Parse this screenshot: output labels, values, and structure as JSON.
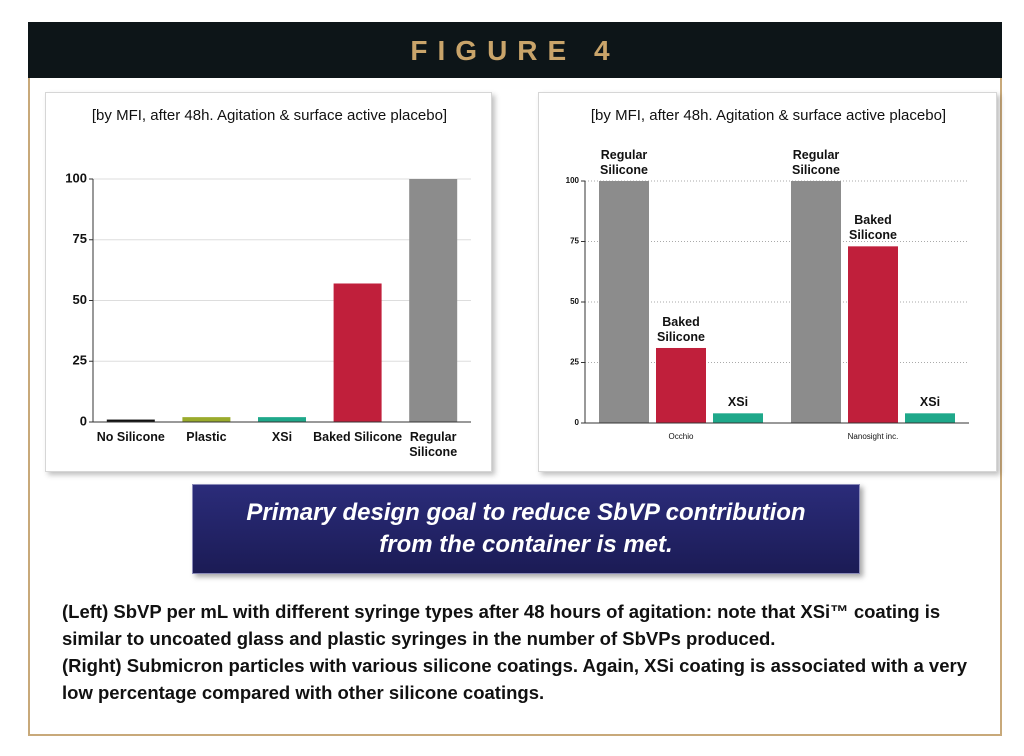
{
  "figure_title": "FIGURE 4",
  "chart_data": [
    {
      "type": "bar",
      "title": "[by MFI, after 48h. Agitation & surface active placebo]",
      "categories": [
        "No Silicone",
        "Plastic",
        "XSi",
        "Baked Silicone",
        "Regular Silicone"
      ],
      "values": [
        1,
        2,
        2,
        57,
        100
      ],
      "colors": [
        "#111111",
        "#9aab2c",
        "#1fa88a",
        "#c01f3b",
        "#8c8c8c"
      ],
      "ylim": [
        0,
        100
      ],
      "yticks": [
        0,
        25,
        50,
        75,
        100
      ],
      "grid": true
    },
    {
      "type": "grouped_bar",
      "title": "[by MFI, after 48h. Agitation & surface active placebo]",
      "categories": [
        "Occhio",
        "Nanosight inc."
      ],
      "series": [
        {
          "name": "Regular Silicone",
          "color": "#8c8c8c",
          "values": [
            100,
            100
          ]
        },
        {
          "name": "Baked Silicone",
          "color": "#c01f3b",
          "values": [
            31,
            73
          ]
        },
        {
          "name": "XSi",
          "color": "#1fa88a",
          "values": [
            4,
            4
          ]
        }
      ],
      "ylim": [
        0,
        100
      ],
      "yticks": [
        0,
        25,
        50,
        75,
        100
      ],
      "grid": true
    }
  ],
  "banner": "Primary design goal to reduce SbVP contribution from the container is met.",
  "caption": [
    "(Left) SbVP per mL with different syringe types after 48 hours of agitation: note that XSi™ coating is similar to uncoated glass and plastic syringes in the number of SbVPs produced.",
    "(Right) Submicron particles with various silicone coatings. Again, XSi coating is associated with a very low percentage compared with other silicone coatings."
  ]
}
